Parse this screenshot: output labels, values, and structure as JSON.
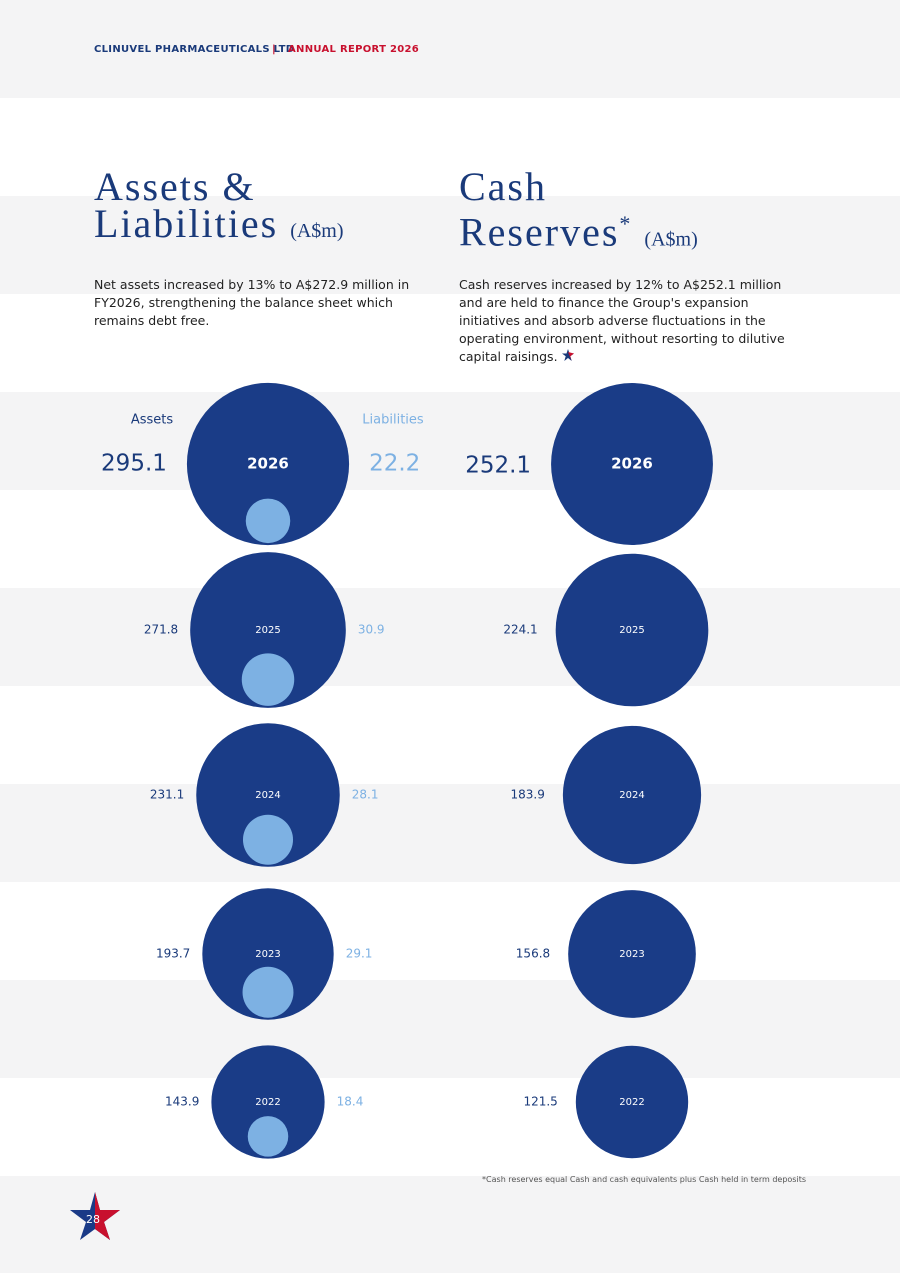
{
  "header": {
    "company": "CLINUVEL PHARMACEUTICALS LTD",
    "report": "ANNUAL REPORT 2026"
  },
  "assets_liabilities": {
    "title_line1": "Assets &",
    "title_line2": "Liabilities",
    "unit": "(A$m)",
    "text": "Net assets increased by 13% to A$272.9 million in FY2026, strengthening the balance sheet which remains debt free.",
    "legend_assets": "Assets",
    "legend_liabilities": "Liabilities",
    "years": [
      2026,
      2025,
      2024,
      2023,
      2022
    ],
    "assets": [
      295.1,
      271.8,
      231.1,
      193.7,
      143.9
    ],
    "liabilities": [
      22.2,
      30.9,
      28.1,
      29.1,
      18.4
    ]
  },
  "cash_reserves": {
    "title_line1": "Cash",
    "title_line2": "Reserves",
    "title_mark": "*",
    "unit": "(A$m)",
    "text": "Cash reserves increased by 12% to A$252.1 million and are held to finance the Group's expansion initiatives and absorb adverse fluctuations in the operating environment, without resorting to dilutive capital raisings.",
    "years": [
      2026,
      2025,
      2024,
      2023,
      2022
    ],
    "cash": [
      252.1,
      224.1,
      183.9,
      156.8,
      121.5
    ]
  },
  "footnote": "*Cash reserves equal Cash and cash equivalents plus Cash held in term deposits",
  "page_number": 28
}
